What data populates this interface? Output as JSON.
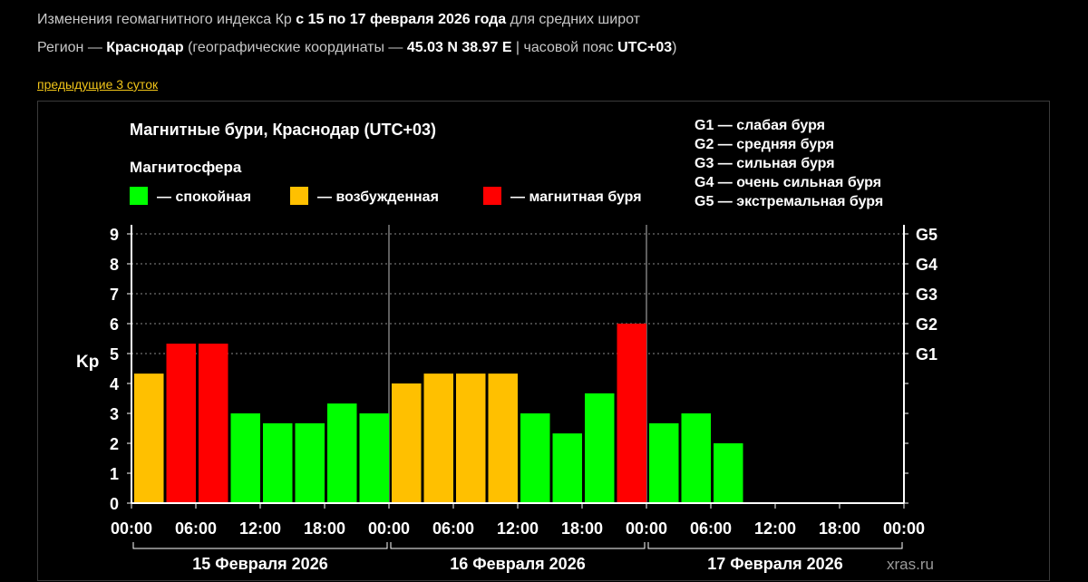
{
  "header": {
    "line1_prefix": "Изменения геомагнитного индекса Кр ",
    "line1_bold": "с 15 по 17 февраля 2026 года",
    "line1_suffix": " для средних широт",
    "line2_prefix": "Регион — ",
    "line2_region": "Краснодар",
    "line2_mid": " (географические координаты — ",
    "line2_coords": "45.03 N 38.97 E",
    "line2_sep": " | часовой пояс ",
    "line2_tz": "UTC+03",
    "line2_end": ")"
  },
  "nav": {
    "prev_label": "предыдущие 3 суток"
  },
  "chart_data": {
    "type": "bar",
    "title": "Магнитные бури, Краснодар (UTC+03)",
    "legend_title": "Магнитосфера",
    "legend": [
      {
        "label": "— спокойная",
        "color": "#00ff00"
      },
      {
        "label": "— возбужденная",
        "color": "#ffc000"
      },
      {
        "label": "— магнитная буря",
        "color": "#ff0000"
      }
    ],
    "storm_scale": [
      "G1 — слабая буря",
      "G2 — средняя буря",
      "G3 — сильная буря",
      "G4 — очень сильная буря",
      "G5 — экстремальная буря"
    ],
    "ylabel": "Kp",
    "ylim": [
      0,
      9
    ],
    "y_ticks": [
      "0",
      "1",
      "2",
      "3",
      "4",
      "5",
      "6",
      "7",
      "8",
      "9"
    ],
    "right_axis": [
      {
        "level": 5,
        "label": "G1"
      },
      {
        "level": 6,
        "label": "G2"
      },
      {
        "level": 7,
        "label": "G3"
      },
      {
        "level": 8,
        "label": "G4"
      },
      {
        "level": 9,
        "label": "G5"
      }
    ],
    "x_ticks": [
      "00:00",
      "06:00",
      "12:00",
      "18:00",
      "00:00",
      "06:00",
      "12:00",
      "18:00",
      "00:00",
      "06:00",
      "12:00",
      "18:00",
      "00:00"
    ],
    "days": [
      "15 Февраля 2026",
      "16 Февраля 2026",
      "17 Февраля 2026"
    ],
    "slots_per_day": 8,
    "values": [
      4.33,
      5.33,
      5.33,
      3.0,
      2.67,
      2.67,
      3.33,
      3.0,
      4.0,
      4.33,
      4.33,
      4.33,
      3.0,
      2.33,
      3.67,
      6.0,
      2.67,
      3.0,
      2.0
    ],
    "levels": [
      "active",
      "storm",
      "storm",
      "quiet",
      "quiet",
      "quiet",
      "quiet",
      "quiet",
      "active",
      "active",
      "active",
      "active",
      "quiet",
      "quiet",
      "quiet",
      "storm",
      "quiet",
      "quiet",
      "quiet"
    ],
    "level_colors": {
      "quiet": "#00ff00",
      "active": "#ffc000",
      "storm": "#ff0000"
    },
    "watermark": "xras.ru",
    "grid": "dashed at storm levels"
  }
}
